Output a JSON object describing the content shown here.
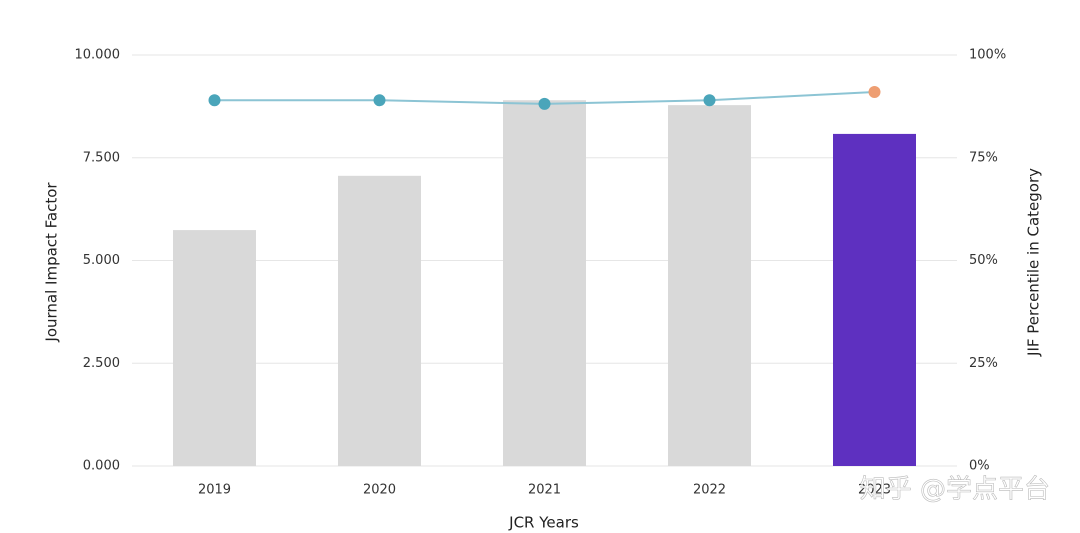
{
  "chart_data": {
    "type": "bar",
    "categories": [
      "2019",
      "2020",
      "2021",
      "2022",
      "2023"
    ],
    "series": [
      {
        "type": "bar",
        "colors": [
          "#d9d9d9",
          "#d9d9d9",
          "#d9d9d9",
          "#d9d9d9",
          "#5e30c0"
        ],
        "values": [
          5.74,
          7.06,
          8.9,
          8.78,
          8.08
        ]
      },
      {
        "type": "line",
        "axis": "y2",
        "color": "#8cc4d4",
        "point_colors": [
          "#4aa5ba",
          "#4aa5ba",
          "#4aa5ba",
          "#4aa5ba",
          "#ee9e72"
        ],
        "values": [
          89.0,
          89.0,
          88.1,
          89.0,
          91.0
        ]
      }
    ],
    "x_label": "JCR Years",
    "y_label": "Journal Impact Factor",
    "y2_label": "JIF Percentile in Category",
    "ylim": [
      0,
      10
    ],
    "yticks": [
      {
        "value": 0,
        "label": "0.000"
      },
      {
        "value": 2.5,
        "label": "2.500"
      },
      {
        "value": 5,
        "label": "5.000"
      },
      {
        "value": 7.5,
        "label": "7.500"
      },
      {
        "value": 10,
        "label": "10.000"
      }
    ],
    "y2lim": [
      0,
      100
    ],
    "y2ticks": [
      {
        "value": 0,
        "label": "0%"
      },
      {
        "value": 25,
        "label": "25%"
      },
      {
        "value": 50,
        "label": "50%"
      },
      {
        "value": 75,
        "label": "75%"
      },
      {
        "value": 100,
        "label": "100%"
      }
    ],
    "grid": true,
    "watermark": "知乎 @学点平台"
  }
}
